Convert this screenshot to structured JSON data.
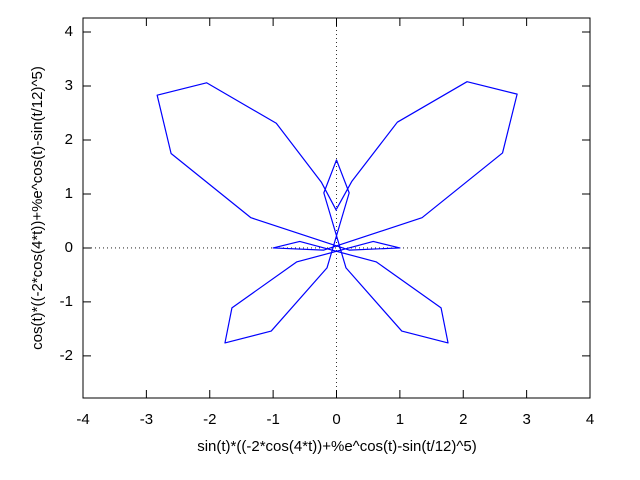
{
  "chart_data": {
    "type": "line",
    "xlabel": "sin(t)*((-2*cos(4*t))+%e^cos(t)-sin(t/12)^5)",
    "ylabel": "cos(t)*((-2*cos(4*t))+%e^cos(t)-sin(t/12)^5)",
    "xlim": [
      -4,
      4
    ],
    "ylim": [
      -2.78,
      4.26
    ],
    "xticks": [
      -4,
      -3,
      -2,
      -1,
      0,
      1,
      2,
      3,
      4
    ],
    "yticks": [
      -2,
      -1,
      0,
      1,
      2,
      3,
      4
    ],
    "zeroaxis": true,
    "series": [
      {
        "color": "#0000ff",
        "x": [
          0,
          0.24,
          0.96,
          2.06,
          2.85,
          2.62,
          1.35,
          -0.2,
          -1,
          -0.58,
          0.63,
          1.65,
          1.76,
          1.03,
          0.15,
          -0.2,
          0,
          0.2,
          -0.15,
          -1.03,
          -1.76,
          -1.65,
          -0.63,
          0.58,
          1,
          0.2,
          -1.35,
          -2.61,
          -2.83,
          -2.05,
          -0.95,
          -0.24,
          0
        ],
        "y": [
          0.72,
          1.23,
          2.33,
          3.08,
          2.85,
          1.76,
          0.56,
          -0.04,
          0,
          0.12,
          -0.26,
          -1.11,
          -1.76,
          -1.54,
          -0.37,
          1.02,
          1.63,
          1.02,
          -0.37,
          -1.54,
          -1.76,
          -1.11,
          -0.26,
          0.12,
          0,
          -0.04,
          0.56,
          1.75,
          2.83,
          3.06,
          2.31,
          1.22,
          0.69
        ]
      }
    ]
  }
}
